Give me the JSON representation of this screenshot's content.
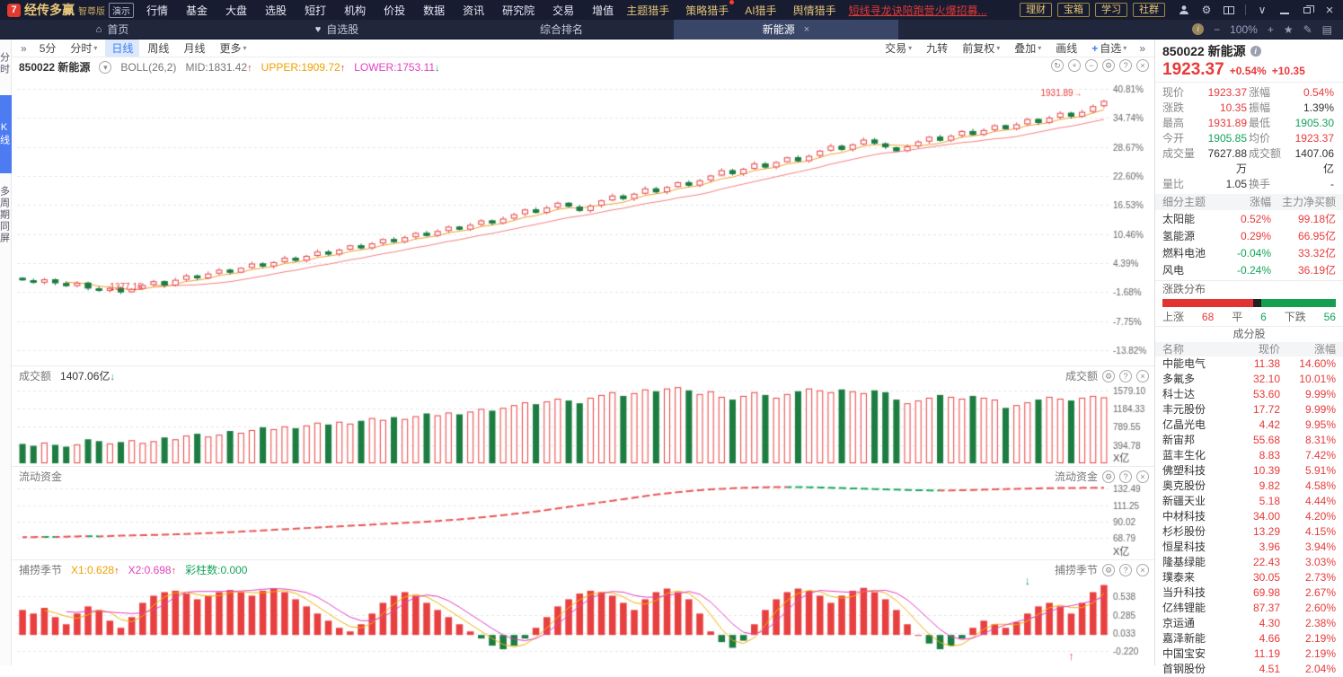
{
  "icons": {
    "up_arrow": "↑",
    "down_arrow": "↓",
    "home": "⌂",
    "heart": "♥",
    "star": "★",
    "pencil": "✎",
    "refresh": "↻",
    "gear": "⚙",
    "question": "?",
    "close": "×",
    "plus": "+",
    "minus": "−",
    "caret_down": "▾",
    "chevrons": "»",
    "layout": "▤",
    "info": "i",
    "chevron_down": "∨",
    "person": "👤"
  },
  "colors": {
    "up": "#e83a3a",
    "down": "#13a45b",
    "accent": "#3b7df5",
    "gold": "#e4c278",
    "ma_fast": "#f0a030",
    "ma_slow": "#f28080"
  },
  "app": {
    "logo_text": "经传多赢",
    "logo_edition": "智尊版",
    "logo_badge": "演示",
    "menu": [
      "行情",
      "基金",
      "大盘",
      "选股",
      "短打",
      "机构",
      "价投",
      "数据",
      "资讯",
      "研究院",
      "交易",
      "增值"
    ],
    "menu_gold": [
      {
        "label": "主题猎手"
      },
      {
        "label": "策略猎手",
        "dot": true
      },
      {
        "label": "AI猎手"
      },
      {
        "label": "舆情猎手"
      }
    ],
    "promo_link": "短线寻龙诀陪跑营火爆招募...",
    "quick_buttons": [
      "理财",
      "宝箱",
      "学习",
      "社群"
    ]
  },
  "tabs": {
    "items": [
      {
        "label": "首页",
        "icon": "home"
      },
      {
        "label": "自选股",
        "icon": "heart"
      },
      {
        "label": "综合排名"
      },
      {
        "label": "新能源",
        "active": true,
        "closable": true
      }
    ],
    "zoom_level": "100%"
  },
  "toolbar": {
    "left": [
      {
        "label": "5分"
      },
      {
        "label": "分时",
        "caret": true
      },
      {
        "label": "日线",
        "active": true
      },
      {
        "label": "周线"
      },
      {
        "label": "月线"
      },
      {
        "label": "更多",
        "caret": true
      }
    ],
    "right": [
      {
        "label": "交易",
        "caret": true
      },
      {
        "label": "九转"
      },
      {
        "label": "前复权",
        "caret": true
      },
      {
        "label": "叠加",
        "caret": true
      },
      {
        "label": "画线"
      },
      {
        "label": "自选",
        "plus": true,
        "caret": true
      }
    ]
  },
  "sidebar": {
    "items": [
      {
        "label": "分时"
      },
      {
        "label": "K线",
        "active": true
      },
      {
        "label": "多周期同屏"
      }
    ]
  },
  "panels": {
    "main": {
      "code": "850022 新能源",
      "indicator": "BOLL(26,2)",
      "mid": "MID:1831.42",
      "upper": "UPPER:1909.72",
      "lower": "LOWER:1753.11"
    },
    "vol": {
      "title": "成交额",
      "value": "1407.06亿"
    },
    "fund": {
      "title": "流动资金"
    },
    "fish": {
      "title": "捕捞季节",
      "x1": "X1:0.628",
      "x2": "X2:0.698",
      "cz": "彩柱数:0.000"
    }
  },
  "quote": {
    "code_name": "850022 新能源",
    "price": "1923.37",
    "chg_pct": "+0.54%",
    "chg": "+10.35",
    "stats": [
      {
        "k": "现价",
        "v": "1923.37",
        "c": "red"
      },
      {
        "k": "涨幅",
        "v": "0.54%",
        "c": "red"
      },
      {
        "k": "涨跌",
        "v": "10.35",
        "c": "red"
      },
      {
        "k": "振幅",
        "v": "1.39%",
        "c": "dark"
      },
      {
        "k": "最高",
        "v": "1931.89",
        "c": "red"
      },
      {
        "k": "最低",
        "v": "1905.30",
        "c": "green"
      },
      {
        "k": "今开",
        "v": "1905.85",
        "c": "green"
      },
      {
        "k": "均价",
        "v": "1923.37",
        "c": "red"
      },
      {
        "k": "成交量",
        "v": "7627.88万",
        "c": "dark"
      },
      {
        "k": "成交额",
        "v": "1407.06亿",
        "c": "dark"
      },
      {
        "k": "量比",
        "v": "1.05",
        "c": "dark"
      },
      {
        "k": "换手",
        "v": "-",
        "c": "dark"
      }
    ]
  },
  "themes": {
    "headers": [
      "细分主题",
      "涨幅",
      "主力净买额"
    ],
    "rows": [
      {
        "name": "太阳能",
        "chg": "0.52%",
        "chg_c": "red",
        "amt": "99.18亿"
      },
      {
        "name": "氢能源",
        "chg": "0.29%",
        "chg_c": "red",
        "amt": "66.95亿"
      },
      {
        "name": "燃料电池",
        "chg": "-0.04%",
        "chg_c": "green",
        "amt": "33.32亿"
      },
      {
        "name": "风电",
        "chg": "-0.24%",
        "chg_c": "green",
        "amt": "36.19亿"
      }
    ]
  },
  "distribution": {
    "title": "涨跌分布",
    "up_label": "上涨",
    "up": "68",
    "flat_label": "平",
    "flat": "6",
    "down_label": "下跌",
    "down": "56"
  },
  "components": {
    "title": "成分股",
    "headers": [
      "名称",
      "现价",
      "涨幅"
    ],
    "rows": [
      {
        "name": "中能电气",
        "price": "11.38",
        "chg": "14.60%"
      },
      {
        "name": "多氟多",
        "price": "32.10",
        "chg": "10.01%"
      },
      {
        "name": "科士达",
        "price": "53.60",
        "chg": "9.99%"
      },
      {
        "name": "丰元股份",
        "price": "17.72",
        "chg": "9.99%"
      },
      {
        "name": "亿晶光电",
        "price": "4.42",
        "chg": "9.95%"
      },
      {
        "name": "新宙邦",
        "price": "55.68",
        "chg": "8.31%"
      },
      {
        "name": "蓝丰生化",
        "price": "8.83",
        "chg": "7.42%"
      },
      {
        "name": "佛塑科技",
        "price": "10.39",
        "chg": "5.91%"
      },
      {
        "name": "奥克股份",
        "price": "9.82",
        "chg": "4.58%"
      },
      {
        "name": "新疆天业",
        "price": "5.18",
        "chg": "4.44%"
      },
      {
        "name": "中材科技",
        "price": "34.00",
        "chg": "4.20%"
      },
      {
        "name": "杉杉股份",
        "price": "13.29",
        "chg": "4.15%"
      },
      {
        "name": "恒星科技",
        "price": "3.96",
        "chg": "3.94%"
      },
      {
        "name": "隆基绿能",
        "price": "22.43",
        "chg": "3.03%"
      },
      {
        "name": "璞泰来",
        "price": "30.05",
        "chg": "2.73%"
      },
      {
        "name": "当升科技",
        "price": "69.98",
        "chg": "2.67%"
      },
      {
        "name": "亿纬锂能",
        "price": "87.37",
        "chg": "2.60%"
      },
      {
        "name": "京运通",
        "price": "4.30",
        "chg": "2.38%"
      },
      {
        "name": "嘉泽新能",
        "price": "4.66",
        "chg": "2.19%"
      },
      {
        "name": "中国宝安",
        "price": "11.19",
        "chg": "2.19%"
      },
      {
        "name": "首钢股份",
        "price": "4.51",
        "chg": "2.04%"
      }
    ]
  },
  "chart_data": [
    {
      "type": "candlestick",
      "name": "日线K线",
      "symbol": "850022 新能源",
      "indicator": "BOLL(26,2)",
      "boll": {
        "mid": 1831.42,
        "upper": 1909.72,
        "lower": 1753.11
      },
      "ylim": [
        -15.5,
        42.5
      ],
      "ytick_values": [
        40.81,
        34.74,
        28.67,
        22.6,
        16.53,
        10.46,
        4.39,
        -1.68,
        -7.75,
        -13.82
      ],
      "ytick_labels": [
        "40.81%",
        "34.74%",
        "28.67%",
        "22.60%",
        "16.53%",
        "10.46%",
        "4.39%",
        "-1.68%",
        "-7.75%",
        "-13.82%"
      ],
      "first_open": 1.3,
      "closes_pct": [
        0.8,
        0.3,
        1.0,
        0.2,
        -0.4,
        0.3,
        -0.9,
        -1.4,
        -0.8,
        -1.7,
        -1.0,
        -0.2,
        0.6,
        -0.3,
        0.9,
        1.8,
        1.2,
        2.2,
        3.0,
        2.4,
        3.4,
        4.3,
        3.7,
        4.6,
        5.5,
        4.9,
        5.9,
        6.8,
        6.2,
        7.2,
        8.1,
        7.5,
        8.5,
        9.4,
        8.8,
        9.8,
        10.7,
        10.1,
        11.1,
        12.0,
        11.4,
        12.4,
        13.3,
        12.7,
        13.7,
        14.6,
        15.6,
        14.9,
        16.0,
        17.0,
        16.2,
        15.3,
        16.4,
        17.5,
        18.5,
        17.8,
        18.9,
        20.0,
        19.2,
        20.3,
        21.3,
        20.6,
        21.7,
        22.7,
        23.8,
        23.0,
        24.1,
        25.2,
        24.4,
        25.5,
        26.5,
        25.7,
        26.8,
        27.9,
        28.9,
        28.1,
        29.2,
        30.2,
        29.4,
        28.6,
        27.8,
        28.8,
        29.8,
        30.8,
        30.0,
        31.0,
        32.0,
        31.2,
        32.2,
        33.2,
        32.4,
        33.4,
        34.5,
        33.7,
        34.8,
        35.8,
        35.0,
        36.0,
        37.2,
        38.3
      ],
      "annotations": [
        {
          "text": "1931.89→",
          "idx": 97,
          "v": 39.8,
          "align": "right"
        },
        {
          "text": "1377.16",
          "idx": 8,
          "v": -0.7,
          "align": "left"
        }
      ]
    },
    {
      "type": "bar",
      "name": "成交额",
      "current": "1407.06亿",
      "unit": "X亿",
      "ylim": [
        0,
        1750
      ],
      "ytick_values": [
        1579.1,
        1184.33,
        789.55,
        394.78
      ],
      "ytick_labels": [
        "1579.10",
        "1184.33",
        "789.55",
        "394.78"
      ],
      "values": [
        420,
        380,
        450,
        400,
        360,
        410,
        520,
        480,
        430,
        460,
        500,
        440,
        480,
        560,
        520,
        600,
        640,
        580,
        620,
        700,
        660,
        720,
        780,
        740,
        800,
        760,
        820,
        880,
        840,
        900,
        860,
        920,
        980,
        940,
        1000,
        960,
        1020,
        1080,
        1040,
        1100,
        1060,
        1120,
        1180,
        1140,
        1200,
        1260,
        1320,
        1280,
        1340,
        1400,
        1360,
        1300,
        1420,
        1480,
        1540,
        1460,
        1520,
        1600,
        1560,
        1620,
        1650,
        1580,
        1500,
        1560,
        1440,
        1380,
        1460,
        1540,
        1480,
        1420,
        1500,
        1560,
        1620,
        1580,
        1540,
        1600,
        1560,
        1520,
        1580,
        1540,
        1380,
        1300,
        1360,
        1420,
        1480,
        1440,
        1400,
        1460,
        1420,
        1380,
        1200,
        1260,
        1320,
        1380,
        1440,
        1400,
        1360,
        1420,
        1460,
        1430
      ]
    },
    {
      "type": "dashed-line",
      "name": "流动资金",
      "unit": "X亿",
      "ylim": [
        60,
        142
      ],
      "ytick_values": [
        132.49,
        111.25,
        90.02,
        68.79
      ],
      "ytick_labels": [
        "132.49",
        "111.25",
        "90.02",
        "68.79"
      ],
      "values": [
        70,
        70.2,
        70.5,
        70.3,
        70.8,
        71,
        71.3,
        71.1,
        71.5,
        72,
        72.3,
        72.6,
        73,
        73.3,
        73.8,
        74.2,
        74.8,
        75.3,
        76,
        76.6,
        77.3,
        78,
        78.8,
        79.5,
        80.3,
        81,
        81.8,
        82.5,
        83.3,
        84,
        84.8,
        85.5,
        86.3,
        87,
        87.8,
        88.5,
        89.3,
        90,
        91,
        92,
        93,
        94.2,
        95.5,
        97,
        98.5,
        100,
        101.5,
        103,
        105,
        107,
        109,
        111,
        113,
        115,
        117,
        119,
        121,
        123,
        125,
        126.5,
        128,
        129.3,
        130.5,
        131.5,
        132.3,
        133,
        133.5,
        134,
        134.3,
        134.5,
        134.6,
        134.5,
        134.3,
        134,
        133.6,
        133.2,
        132.8,
        132.4,
        132,
        131.6,
        131.2,
        130.8,
        130.5,
        130.3,
        130.2,
        130.3,
        130.5,
        130.8,
        131.2,
        131.6,
        132,
        132.3,
        132.6,
        132.9,
        133.1,
        133.3,
        133.4,
        133.5,
        133.5,
        133.5
      ]
    },
    {
      "type": "bar-line",
      "name": "捕捞季节",
      "x1": 0.628,
      "x2": 0.698,
      "color_bar_count": 0.0,
      "ylim": [
        -0.35,
        0.82
      ],
      "ytick_values": [
        0.538,
        0.285,
        0.033,
        -0.22
      ],
      "ytick_labels": [
        "0.538",
        "0.285",
        "0.033",
        "-0.220"
      ],
      "values": [
        0.35,
        0.3,
        0.38,
        0.25,
        0.15,
        0.3,
        0.4,
        0.35,
        0.2,
        0.1,
        0.25,
        0.45,
        0.55,
        0.6,
        0.62,
        0.58,
        0.5,
        0.55,
        0.6,
        0.63,
        0.6,
        0.55,
        0.62,
        0.65,
        0.6,
        0.5,
        0.4,
        0.3,
        0.2,
        0.1,
        0.05,
        0.15,
        0.3,
        0.45,
        0.55,
        0.6,
        0.55,
        0.45,
        0.35,
        0.25,
        0.15,
        0.05,
        -0.05,
        -0.15,
        -0.2,
        -0.15,
        -0.05,
        0.1,
        0.25,
        0.4,
        0.5,
        0.58,
        0.62,
        0.6,
        0.55,
        0.45,
        0.35,
        0.5,
        0.6,
        0.65,
        0.6,
        0.5,
        0.3,
        0.05,
        -0.1,
        -0.18,
        -0.08,
        0.15,
        0.35,
        0.5,
        0.6,
        0.65,
        0.62,
        0.55,
        0.45,
        0.55,
        0.62,
        0.66,
        0.6,
        0.5,
        0.35,
        0.15,
        0.0,
        -0.12,
        -0.2,
        -0.15,
        -0.05,
        0.1,
        0.2,
        0.15,
        0.1,
        0.18,
        0.3,
        0.4,
        0.45,
        0.4,
        0.3,
        0.45,
        0.6,
        0.7
      ],
      "markers": [
        {
          "glyph": "↓",
          "idx": 92,
          "v": 0.76,
          "color": "#13a45b"
        },
        {
          "glyph": "↑",
          "idx": 96,
          "v": -0.3,
          "color": "#e83a3a"
        }
      ]
    }
  ]
}
